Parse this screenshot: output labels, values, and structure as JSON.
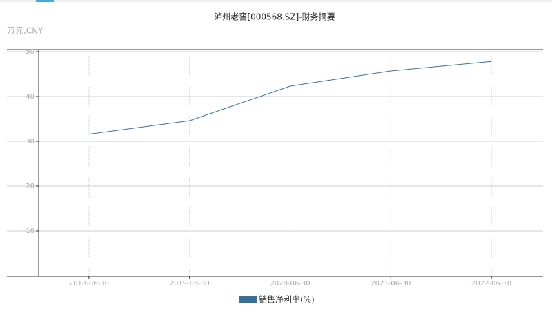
{
  "chart_data": {
    "type": "line",
    "title": "泸州老窖[000568.SZ]-财务摘要",
    "unit_label": "万元,CNY",
    "categories": [
      "2018-06-30",
      "2019-06-30",
      "2020-06-30",
      "2021-06-30",
      "2022-06-30"
    ],
    "series": [
      {
        "name": "销售净利率(%)",
        "color": "#3a6f9a",
        "values": [
          31.6,
          34.6,
          42.3,
          45.7,
          47.8
        ]
      }
    ],
    "ylim": [
      0,
      50
    ],
    "yticks": [
      10,
      20,
      30,
      40,
      50
    ],
    "grid": true
  }
}
